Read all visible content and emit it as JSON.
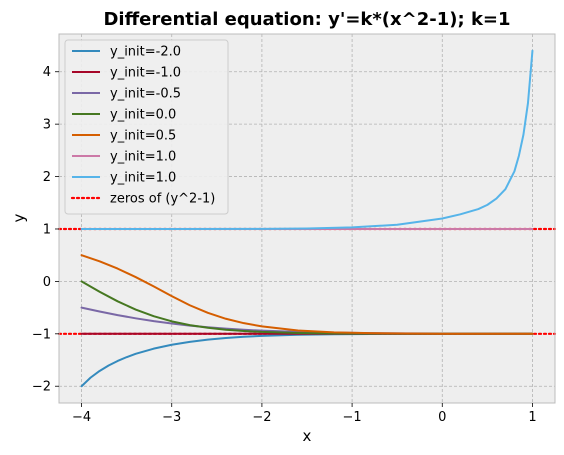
{
  "chart_data": {
    "type": "line",
    "title": "Differential equation: y'=k*(x^2-1); k=1",
    "xlabel": "x",
    "ylabel": "y",
    "xlim": [
      -4.25,
      1.25
    ],
    "ylim": [
      -2.32,
      4.72
    ],
    "xticks": [
      -4,
      -3,
      -2,
      -1,
      0,
      1
    ],
    "yticks": [
      -2,
      -1,
      0,
      1,
      2,
      3,
      4
    ],
    "xtick_labels": [
      "−4",
      "−3",
      "−2",
      "−1",
      "0",
      "1"
    ],
    "ytick_labels": [
      "−2",
      "−1",
      "0",
      "1",
      "2",
      "3",
      "4"
    ],
    "grid": true,
    "background": "#eeeeee",
    "grid_color": "#b2b2b2",
    "legend_position": "top-left",
    "series": [
      {
        "name": "y_init=-2.0",
        "color": "#348abd",
        "x": [
          -4,
          -3.9,
          -3.8,
          -3.7,
          -3.6,
          -3.5,
          -3.4,
          -3.2,
          -3.0,
          -2.8,
          -2.6,
          -2.4,
          -2.2,
          -2.0,
          -1.6,
          -1.2,
          -0.8,
          -0.4,
          0,
          0.4,
          0.8,
          1.0
        ],
        "y": [
          -2.0,
          -1.836,
          -1.709,
          -1.605,
          -1.518,
          -1.445,
          -1.382,
          -1.283,
          -1.209,
          -1.153,
          -1.111,
          -1.079,
          -1.056,
          -1.039,
          -1.018,
          -1.008,
          -1.003,
          -1.001,
          -1.0,
          -1.0,
          -1.0,
          -1.0
        ]
      },
      {
        "name": "y_init=-1.0",
        "color": "#a60628",
        "x": [
          -4,
          1.0
        ],
        "y": [
          -1.0,
          -1.0
        ]
      },
      {
        "name": "y_init=-0.5",
        "color": "#7a68a6",
        "x": [
          -4,
          -3.8,
          -3.6,
          -3.4,
          -3.2,
          -3.0,
          -2.8,
          -2.6,
          -2.4,
          -2.2,
          -2.0,
          -1.6,
          -1.2,
          -0.8,
          -0.4,
          0,
          0.4,
          0.8,
          1.0
        ],
        "y": [
          -0.5,
          -0.574,
          -0.643,
          -0.704,
          -0.758,
          -0.804,
          -0.843,
          -0.875,
          -0.902,
          -0.923,
          -0.94,
          -0.964,
          -0.978,
          -0.987,
          -0.992,
          -0.995,
          -0.997,
          -0.998,
          -0.999
        ]
      },
      {
        "name": "y_init=0.0",
        "color": "#467821",
        "x": [
          -4,
          -3.8,
          -3.6,
          -3.4,
          -3.2,
          -3.0,
          -2.8,
          -2.6,
          -2.4,
          -2.2,
          -2.0,
          -1.6,
          -1.2,
          -0.8,
          -0.4,
          0,
          0.4,
          0.8,
          1.0
        ],
        "y": [
          0.0,
          -0.197,
          -0.38,
          -0.537,
          -0.664,
          -0.762,
          -0.834,
          -0.885,
          -0.922,
          -0.946,
          -0.964,
          -0.984,
          -0.993,
          -0.997,
          -0.998,
          -0.999,
          -1.0,
          -1.0,
          -1.0
        ]
      },
      {
        "name": "y_init=0.5",
        "color": "#d55e00",
        "x": [
          -4,
          -3.8,
          -3.6,
          -3.4,
          -3.2,
          -3.0,
          -2.8,
          -2.6,
          -2.4,
          -2.2,
          -2.0,
          -1.6,
          -1.2,
          -0.8,
          -0.4,
          0,
          0.4,
          0.8,
          1.0
        ],
        "y": [
          0.5,
          0.384,
          0.244,
          0.083,
          -0.095,
          -0.28,
          -0.455,
          -0.6,
          -0.713,
          -0.797,
          -0.858,
          -0.936,
          -0.972,
          -0.988,
          -0.995,
          -0.998,
          -0.999,
          -1.0,
          -1.0
        ]
      },
      {
        "name": "y_init=1.0",
        "color": "#cc79a7",
        "x": [
          -4,
          1.0
        ],
        "y": [
          1.0,
          1.0
        ]
      },
      {
        "name": "y_init=1.0",
        "color": "#56b4e9",
        "x": [
          -4,
          -3,
          -2,
          -1.5,
          -1.0,
          -0.5,
          0.0,
          0.2,
          0.4,
          0.5,
          0.6,
          0.7,
          0.8,
          0.85,
          0.9,
          0.95,
          1.0
        ],
        "y": [
          1.0,
          1.0,
          1.002,
          1.008,
          1.03,
          1.08,
          1.2,
          1.28,
          1.38,
          1.46,
          1.58,
          1.76,
          2.1,
          2.4,
          2.8,
          3.4,
          4.4
        ]
      }
    ],
    "hlines": {
      "name": "zeros of (y^2-1)",
      "color": "#ff0000",
      "style": "dotted",
      "values": [
        -1,
        1
      ]
    }
  }
}
